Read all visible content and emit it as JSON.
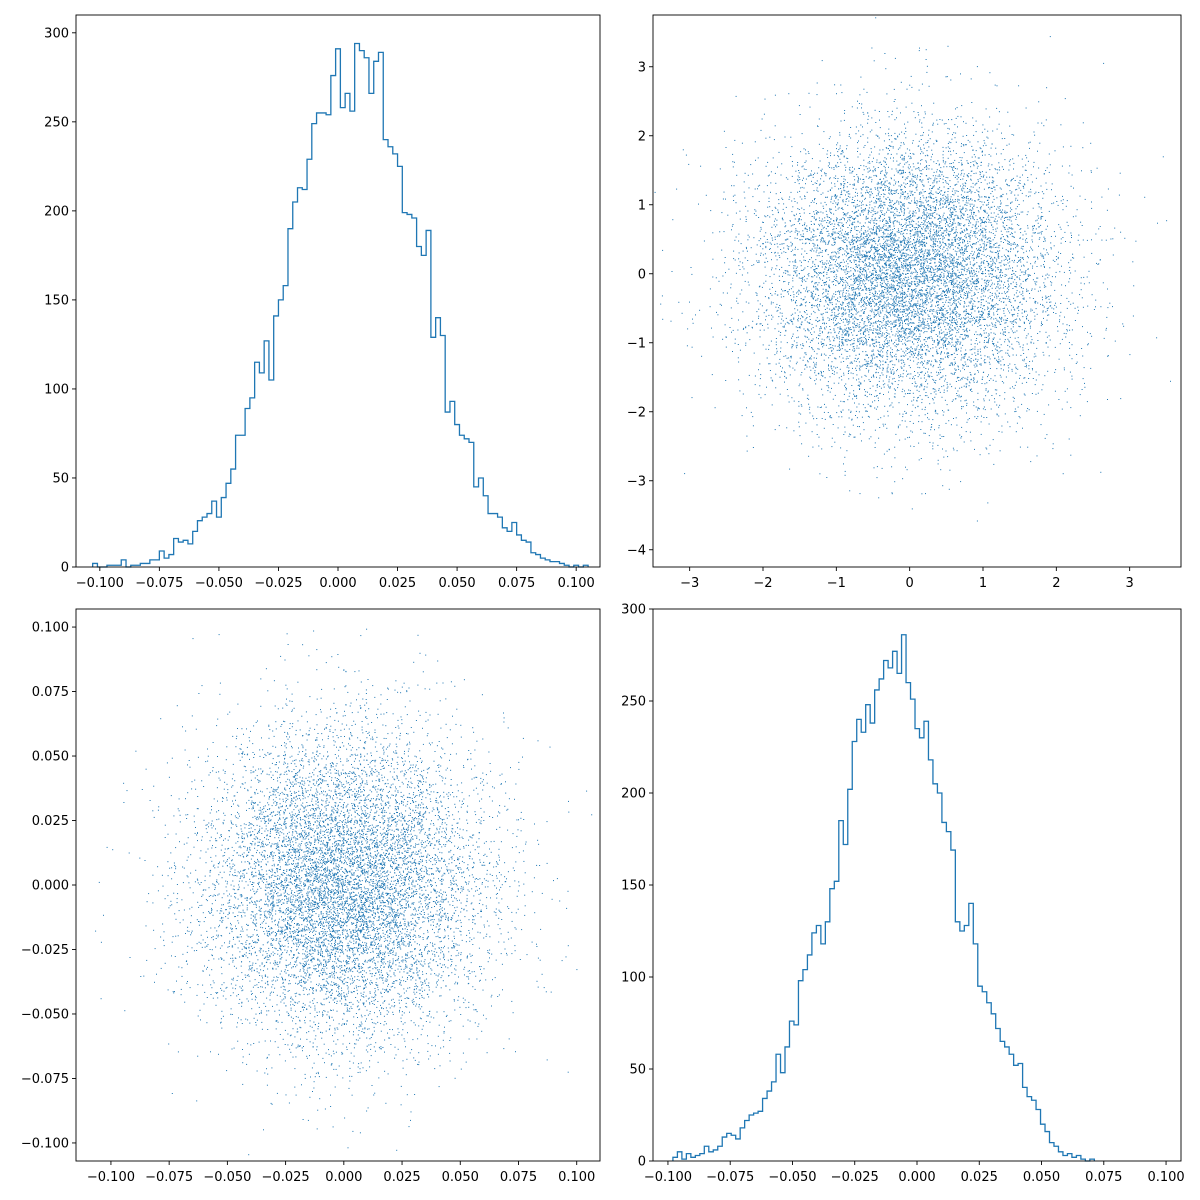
{
  "figure": {
    "background": "#ffffff"
  },
  "chart_data": [
    {
      "type": "histogram-step",
      "name": "top-left",
      "title": "",
      "xlabel": "",
      "ylabel": "",
      "xlim": [
        -0.11,
        0.11
      ],
      "ylim": [
        0,
        310
      ],
      "color": "#1f77b4",
      "grid": false,
      "xticks": [
        {
          "value": -0.1,
          "label": "−0.100"
        },
        {
          "value": -0.075,
          "label": "−0.075"
        },
        {
          "value": -0.05,
          "label": "−0.050"
        },
        {
          "value": -0.025,
          "label": "−0.025"
        },
        {
          "value": 0,
          "label": "0.000"
        },
        {
          "value": 0.025,
          "label": "0.025"
        },
        {
          "value": 0.05,
          "label": "0.050"
        },
        {
          "value": 0.075,
          "label": "0.075"
        },
        {
          "value": 0.1,
          "label": "0.100"
        }
      ],
      "yticks": [
        {
          "value": 0,
          "label": "0"
        },
        {
          "value": 50,
          "label": "50"
        },
        {
          "value": 100,
          "label": "100"
        },
        {
          "value": 150,
          "label": "150"
        },
        {
          "value": 200,
          "label": "200"
        },
        {
          "value": 250,
          "label": "250"
        },
        {
          "value": 300,
          "label": "300"
        }
      ],
      "bin_start": -0.103,
      "bin_width": 0.002,
      "counts": [
        2,
        0,
        0,
        1,
        1,
        1,
        4,
        0,
        1,
        1,
        2,
        2,
        4,
        4,
        9,
        5,
        7,
        16,
        14,
        15,
        13,
        20,
        26,
        28,
        30,
        37,
        28,
        39,
        47,
        55,
        74,
        74,
        89,
        95,
        115,
        109,
        127,
        105,
        141,
        150,
        158,
        190,
        205,
        213,
        212,
        229,
        249,
        255,
        255,
        254,
        276,
        291,
        258,
        266,
        256,
        294,
        290,
        286,
        266,
        284,
        289,
        240,
        236,
        232,
        225,
        199,
        198,
        196,
        180,
        175,
        189,
        129,
        140,
        130,
        87,
        93,
        80,
        74,
        72,
        70,
        45,
        50,
        40,
        30,
        30,
        28,
        22,
        20,
        25,
        18,
        15,
        14,
        8,
        7,
        5,
        4,
        3,
        3,
        2,
        1,
        0,
        1,
        0,
        1
      ]
    },
    {
      "type": "scatter",
      "name": "top-right",
      "title": "",
      "xlabel": "",
      "ylabel": "",
      "xlim": [
        -3.5,
        3.7
      ],
      "ylim": [
        -4.25,
        3.75
      ],
      "color": "#1f77b4",
      "grid": false,
      "n_points": 10000,
      "distribution": "standard normal, mean 0, std 1",
      "xticks": [
        {
          "value": -3,
          "label": "−3"
        },
        {
          "value": -2,
          "label": "−2"
        },
        {
          "value": -1,
          "label": "−1"
        },
        {
          "value": 0,
          "label": "0"
        },
        {
          "value": 1,
          "label": "1"
        },
        {
          "value": 2,
          "label": "2"
        },
        {
          "value": 3,
          "label": "3"
        }
      ],
      "yticks": [
        {
          "value": -4,
          "label": "−4"
        },
        {
          "value": -3,
          "label": "−3"
        },
        {
          "value": -2,
          "label": "−2"
        },
        {
          "value": -1,
          "label": "−1"
        },
        {
          "value": 0,
          "label": "0"
        },
        {
          "value": 1,
          "label": "1"
        },
        {
          "value": 2,
          "label": "2"
        },
        {
          "value": 3,
          "label": "3"
        }
      ]
    },
    {
      "type": "scatter",
      "name": "bottom-left",
      "title": "",
      "xlabel": "",
      "ylabel": "",
      "xlim": [
        -0.115,
        0.11
      ],
      "ylim": [
        -0.107,
        0.107
      ],
      "color": "#1f77b4",
      "grid": false,
      "n_points": 10000,
      "distribution": "normal, mean 0, std 0.03",
      "xticks": [
        {
          "value": -0.1,
          "label": "−0.100"
        },
        {
          "value": -0.075,
          "label": "−0.075"
        },
        {
          "value": -0.05,
          "label": "−0.050"
        },
        {
          "value": -0.025,
          "label": "−0.025"
        },
        {
          "value": 0,
          "label": "0.000"
        },
        {
          "value": 0.025,
          "label": "0.025"
        },
        {
          "value": 0.05,
          "label": "0.050"
        },
        {
          "value": 0.075,
          "label": "0.075"
        },
        {
          "value": 0.1,
          "label": "0.100"
        }
      ],
      "yticks": [
        {
          "value": -0.1,
          "label": "−0.100"
        },
        {
          "value": -0.075,
          "label": "−0.075"
        },
        {
          "value": -0.05,
          "label": "−0.050"
        },
        {
          "value": -0.025,
          "label": "−0.025"
        },
        {
          "value": 0,
          "label": "0.000"
        },
        {
          "value": 0.025,
          "label": "0.025"
        },
        {
          "value": 0.05,
          "label": "0.050"
        },
        {
          "value": 0.075,
          "label": "0.075"
        },
        {
          "value": 0.1,
          "label": "0.100"
        }
      ]
    },
    {
      "type": "histogram-step",
      "name": "bottom-right",
      "title": "",
      "xlabel": "",
      "ylabel": "",
      "xlim": [
        -0.106,
        0.106
      ],
      "ylim": [
        0,
        300
      ],
      "color": "#1f77b4",
      "grid": false,
      "xticks": [
        {
          "value": -0.1,
          "label": "−0.100"
        },
        {
          "value": -0.075,
          "label": "−0.075"
        },
        {
          "value": -0.05,
          "label": "−0.050"
        },
        {
          "value": -0.025,
          "label": "−0.025"
        },
        {
          "value": 0,
          "label": "0.000"
        },
        {
          "value": 0.025,
          "label": "0.025"
        },
        {
          "value": 0.05,
          "label": "0.050"
        },
        {
          "value": 0.075,
          "label": "0.075"
        },
        {
          "value": 0.1,
          "label": "0.100"
        }
      ],
      "yticks": [
        {
          "value": 0,
          "label": "0"
        },
        {
          "value": 50,
          "label": "50"
        },
        {
          "value": 100,
          "label": "100"
        },
        {
          "value": 150,
          "label": "150"
        },
        {
          "value": 200,
          "label": "200"
        },
        {
          "value": 250,
          "label": "250"
        },
        {
          "value": 300,
          "label": "300"
        }
      ],
      "bin_start": -0.098,
      "bin_width": 0.0018,
      "counts": [
        2,
        5,
        1,
        4,
        2,
        3,
        4,
        8,
        5,
        6,
        8,
        13,
        15,
        14,
        12,
        18,
        22,
        25,
        26,
        27,
        34,
        38,
        43,
        58,
        48,
        62,
        76,
        74,
        98,
        104,
        112,
        124,
        128,
        118,
        130,
        148,
        152,
        185,
        172,
        202,
        228,
        240,
        233,
        248,
        238,
        256,
        262,
        272,
        268,
        277,
        265,
        286,
        260,
        251,
        235,
        230,
        239,
        218,
        205,
        200,
        184,
        179,
        169,
        130,
        125,
        128,
        140,
        118,
        95,
        92,
        86,
        80,
        72,
        65,
        62,
        58,
        52,
        53,
        40,
        35,
        33,
        28,
        20,
        16,
        10,
        8,
        5,
        3,
        4,
        2,
        3,
        1,
        0,
        1
      ]
    }
  ]
}
